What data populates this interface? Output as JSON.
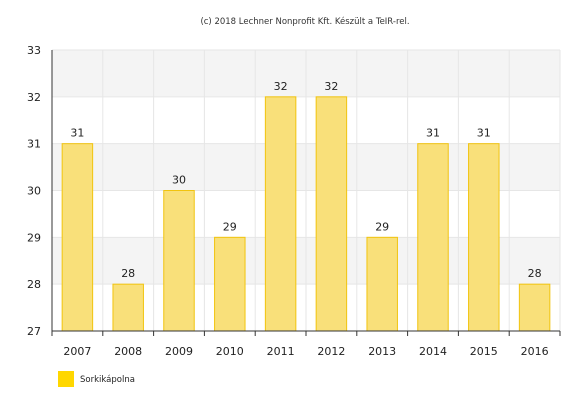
{
  "credit": "(c) 2018 Lechner Nonprofit Kft. Készült a TeIR-rel.",
  "legend": {
    "label": "Sorkikápolna",
    "color": "#ffd700"
  },
  "colors": {
    "bar_fill": "#f9e07a",
    "bar_stroke": "#f1c40f",
    "band": "#f4f4f4",
    "grid": "#e6e6e6",
    "axis": "#333333"
  },
  "chart_data": {
    "type": "bar",
    "title": "",
    "xlabel": "",
    "ylabel": "",
    "categories": [
      "2007",
      "2008",
      "2009",
      "2010",
      "2011",
      "2012",
      "2013",
      "2014",
      "2015",
      "2016"
    ],
    "series": [
      {
        "name": "Sorkikápolna",
        "values": [
          31,
          28,
          30,
          29,
          32,
          32,
          29,
          31,
          31,
          28
        ]
      }
    ],
    "ylim": [
      27,
      33
    ],
    "yticks": [
      27,
      28,
      29,
      30,
      31,
      32,
      33
    ],
    "grid": true,
    "alternating_bands": true,
    "data_labels": true,
    "legend_position": "bottom-left"
  }
}
